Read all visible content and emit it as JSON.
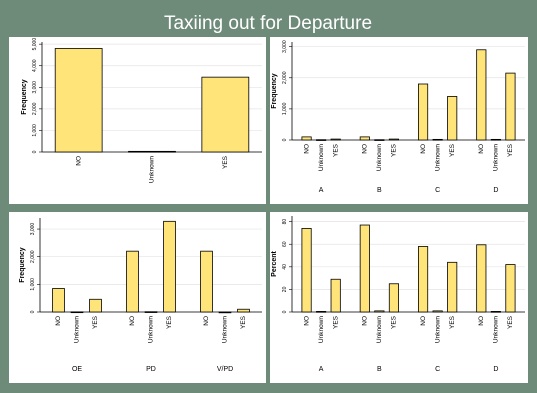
{
  "title": "Taxiing out for Departure",
  "chart_data": [
    {
      "type": "bar",
      "y_label": "Frequency",
      "color": "#ffe47a",
      "grid": true,
      "categories": [
        "NO",
        "Unknown",
        "YES"
      ],
      "values": [
        4800,
        30,
        3470
      ],
      "ylim": [
        0,
        5100
      ],
      "yticks": [
        0,
        {
          "value": 1000,
          "label": "1,000"
        },
        {
          "value": 2000,
          "label": "2,000"
        },
        {
          "value": 3000,
          "label": "3,000"
        },
        {
          "value": 4000,
          "label": "4,000"
        },
        {
          "value": 5000,
          "label": "5,000"
        }
      ]
    },
    {
      "type": "grouped_bar",
      "y_label": "Frequency",
      "color": "#ffe47a",
      "grid": true,
      "categories": [
        "NO",
        "Unknown",
        "YES"
      ],
      "series": [
        {
          "name": "A",
          "values": [
            100,
            10,
            30
          ]
        },
        {
          "name": "B",
          "values": [
            100,
            10,
            30
          ]
        },
        {
          "name": "C",
          "values": [
            1800,
            20,
            1400
          ]
        },
        {
          "name": "D",
          "values": [
            2900,
            20,
            2150
          ]
        }
      ],
      "ylim": [
        0,
        3150
      ],
      "yticks": [
        0,
        {
          "value": 1000,
          "label": "1,000"
        },
        {
          "value": 2000,
          "label": "2,000"
        },
        {
          "value": 3000,
          "label": "3,000"
        }
      ]
    },
    {
      "type": "grouped_bar",
      "y_label": "Frequency",
      "color": "#ffe47a",
      "grid": true,
      "categories": [
        "NO",
        "Unknown",
        "YES"
      ],
      "series": [
        {
          "name": "OE",
          "values": [
            850,
            5,
            460
          ]
        },
        {
          "name": "PD",
          "values": [
            2200,
            10,
            3280
          ]
        },
        {
          "name": "V/PD",
          "values": [
            2200,
            0,
            100
          ]
        }
      ],
      "ylim": [
        0,
        3400
      ],
      "yticks": [
        0,
        {
          "value": 1000,
          "label": "1,000"
        },
        {
          "value": 2000,
          "label": "2,000"
        },
        {
          "value": 3000,
          "label": "3,000"
        }
      ]
    },
    {
      "type": "grouped_bar",
      "y_label": "Percent",
      "color": "#ffe47a",
      "grid": true,
      "categories": [
        "NO",
        "Unknown",
        "YES"
      ],
      "series": [
        {
          "name": "A",
          "values": [
            74,
            0.5,
            29
          ]
        },
        {
          "name": "B",
          "values": [
            77,
            1,
            25
          ]
        },
        {
          "name": "C",
          "values": [
            58,
            1,
            44
          ]
        },
        {
          "name": "D",
          "values": [
            59.5,
            0.5,
            42
          ]
        }
      ],
      "ylim": [
        0,
        85
      ],
      "yticks": [
        0,
        20,
        40,
        60,
        80
      ]
    }
  ]
}
